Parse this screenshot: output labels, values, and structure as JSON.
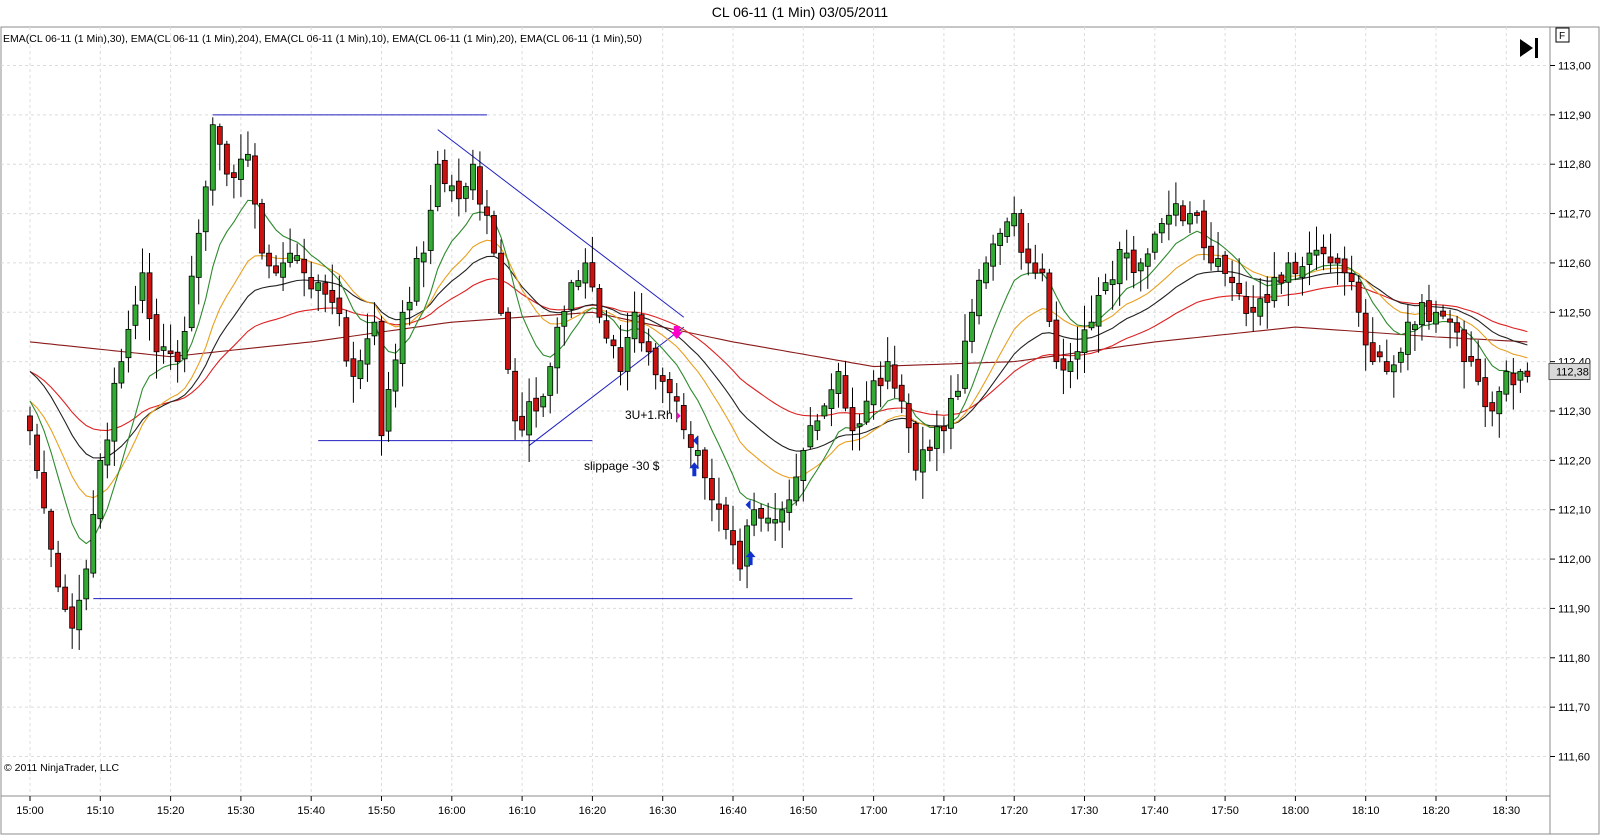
{
  "header": {
    "title": "CL 06-11 (1 Min)  03/05/2011",
    "indicator_label": "EMA(CL 06-11 (1 Min),30), EMA(CL 06-11 (1 Min),204), EMA(CL 06-11 (1 Min),10), EMA(CL 06-11 (1 Min),20), EMA(CL 06-11 (1 Min),50)",
    "copyright": "© 2011 NinjaTrader, LLC",
    "f_button": "F",
    "last_price_label": "112,38"
  },
  "colors": {
    "up_candle": "#33aa33",
    "down_candle": "#cc1111",
    "drawing_lines": "#2020c0",
    "ema10": "#2d8a2d",
    "ema20": "#e8a020",
    "ema30": "#222222",
    "ema50": "#dd2222",
    "ema204": "#8b1a1a",
    "arrow_marker": "#1030d0",
    "entry_marker": "#ff00cc"
  },
  "annotations": {
    "trade_label": "3U+1.Rh",
    "slippage_label": "slippage -30 $"
  },
  "chart_data": {
    "type": "candlestick",
    "interval": "1 Min",
    "instrument": "CL 06-11",
    "date": "03/05/2011",
    "x_start": "15:00",
    "x_end": "18:33",
    "x_ticks": [
      "15:00",
      "15:10",
      "15:20",
      "15:30",
      "15:40",
      "15:50",
      "16:00",
      "16:10",
      "16:20",
      "16:30",
      "16:40",
      "16:50",
      "17:00",
      "17:10",
      "17:20",
      "17:30",
      "17:40",
      "17:50",
      "18:00",
      "18:10",
      "18:20",
      "18:30"
    ],
    "y_ticks": [
      "111,60",
      "111,70",
      "111,80",
      "111,90",
      "112,00",
      "112,10",
      "112,20",
      "112,30",
      "112,40",
      "112,50",
      "112,60",
      "112,70",
      "112,80",
      "112,90",
      "113,00"
    ],
    "ylim": [
      111.52,
      113.08
    ],
    "last_price": 112.38,
    "close_path": [
      [
        0,
        112.26
      ],
      [
        3,
        112.02
      ],
      [
        6,
        111.86
      ],
      [
        8,
        111.98
      ],
      [
        10,
        112.2
      ],
      [
        13,
        112.4
      ],
      [
        16,
        112.58
      ],
      [
        18,
        112.42
      ],
      [
        21,
        112.4
      ],
      [
        24,
        112.66
      ],
      [
        26,
        112.88
      ],
      [
        28,
        112.78
      ],
      [
        31,
        112.82
      ],
      [
        33,
        112.62
      ],
      [
        36,
        112.6
      ],
      [
        39,
        112.58
      ],
      [
        41,
        112.56
      ],
      [
        43,
        112.52
      ],
      [
        46,
        112.37
      ],
      [
        49,
        112.48
      ],
      [
        50,
        112.25
      ],
      [
        53,
        112.5
      ],
      [
        56,
        112.62
      ],
      [
        58,
        112.8
      ],
      [
        61,
        112.73
      ],
      [
        63,
        112.8
      ],
      [
        66,
        112.62
      ],
      [
        69,
        112.28
      ],
      [
        72,
        112.3
      ],
      [
        74,
        112.39
      ],
      [
        77,
        112.56
      ],
      [
        79,
        112.6
      ],
      [
        81,
        112.49
      ],
      [
        84,
        112.38
      ],
      [
        86,
        112.5
      ],
      [
        88,
        112.42
      ],
      [
        90,
        112.36
      ],
      [
        92,
        112.32
      ],
      [
        95,
        112.22
      ],
      [
        97,
        112.12
      ],
      [
        99,
        112.06
      ],
      [
        101,
        111.98
      ],
      [
        103,
        112.1
      ],
      [
        106,
        112.08
      ],
      [
        108,
        112.12
      ],
      [
        110,
        112.22
      ],
      [
        112,
        112.28
      ],
      [
        115,
        112.38
      ],
      [
        117,
        112.26
      ],
      [
        119,
        112.32
      ],
      [
        122,
        112.4
      ],
      [
        124,
        112.32
      ],
      [
        126,
        112.18
      ],
      [
        128,
        112.22
      ],
      [
        130,
        112.26
      ],
      [
        132,
        112.34
      ],
      [
        134,
        112.5
      ],
      [
        136,
        112.6
      ],
      [
        138,
        112.66
      ],
      [
        140,
        112.7
      ],
      [
        142,
        112.6
      ],
      [
        144,
        112.58
      ],
      [
        146,
        112.4
      ],
      [
        148,
        112.4
      ],
      [
        151,
        112.48
      ],
      [
        153,
        112.56
      ],
      [
        156,
        112.62
      ],
      [
        158,
        112.6
      ],
      [
        161,
        112.68
      ],
      [
        163,
        112.72
      ],
      [
        165,
        112.7
      ],
      [
        168,
        112.6
      ],
      [
        171,
        112.56
      ],
      [
        174,
        112.5
      ],
      [
        176,
        112.52
      ],
      [
        179,
        112.6
      ],
      [
        182,
        112.62
      ],
      [
        185,
        112.6
      ],
      [
        187,
        112.58
      ],
      [
        189,
        112.5
      ],
      [
        191,
        112.4
      ],
      [
        193,
        112.38
      ],
      [
        196,
        112.48
      ],
      [
        198,
        112.52
      ],
      [
        200,
        112.5
      ],
      [
        202,
        112.48
      ],
      [
        204,
        112.4
      ],
      [
        206,
        112.36
      ],
      [
        208,
        112.3
      ],
      [
        210,
        112.38
      ],
      [
        212,
        112.38
      ],
      [
        213,
        112.37
      ]
    ],
    "ema_series": [
      {
        "name": "EMA(CL 06-11 (1 Min),30)",
        "period": 30
      },
      {
        "name": "EMA(CL 06-11 (1 Min),204)",
        "period": 204
      },
      {
        "name": "EMA(CL 06-11 (1 Min),10)",
        "period": 10
      },
      {
        "name": "EMA(CL 06-11 (1 Min),20)",
        "period": 20
      },
      {
        "name": "EMA(CL 06-11 (1 Min),50)",
        "period": 50
      }
    ],
    "ema204_path": [
      [
        0,
        112.44
      ],
      [
        20,
        112.41
      ],
      [
        40,
        112.44
      ],
      [
        60,
        112.48
      ],
      [
        80,
        112.5
      ],
      [
        100,
        112.44
      ],
      [
        120,
        112.39
      ],
      [
        140,
        112.4
      ],
      [
        160,
        112.44
      ],
      [
        180,
        112.47
      ],
      [
        200,
        112.45
      ],
      [
        213,
        112.44
      ]
    ],
    "drawn_lines": [
      {
        "from": [
          9,
          111.92
        ],
        "to": [
          117,
          111.92
        ]
      },
      {
        "from": [
          26,
          112.9
        ],
        "to": [
          65,
          112.9
        ]
      },
      {
        "from": [
          41,
          112.24
        ],
        "to": [
          80,
          112.24
        ]
      },
      {
        "from": [
          58,
          112.87
        ],
        "to": [
          93,
          112.49
        ]
      },
      {
        "from": [
          71,
          112.23
        ],
        "to": [
          93,
          112.47
        ]
      }
    ],
    "markers": [
      {
        "x": 92,
        "y": 112.46,
        "type": "entry-arrow"
      },
      {
        "x": 92,
        "y": 112.29,
        "type": "fill-dot"
      },
      {
        "x": 95,
        "y": 112.24,
        "type": "exit-arrow"
      },
      {
        "x": 94.5,
        "y": 112.18,
        "type": "up-arrow"
      },
      {
        "x": 102.5,
        "y": 112.0,
        "type": "up-arrow"
      },
      {
        "x": 102.5,
        "y": 112.11,
        "type": "exit-arrow"
      }
    ]
  }
}
